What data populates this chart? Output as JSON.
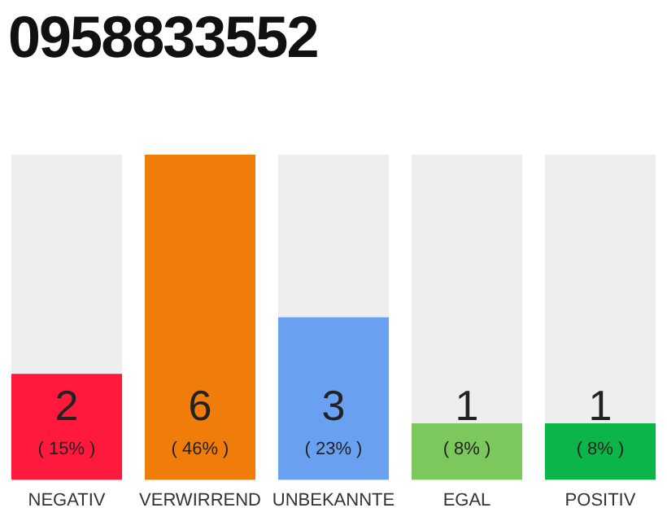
{
  "chart_data": {
    "type": "bar",
    "title": "0958833552",
    "categories": [
      "NEGATIV",
      "VERWIRREND",
      "UNBEKANNTE",
      "EGAL",
      "POSITIV"
    ],
    "values": [
      15,
      46,
      23,
      8,
      8
    ],
    "colors": [
      "#ff1a3d",
      "#f07d0a",
      "#6aa0f0",
      "#7dc85c",
      "#0bb54a"
    ],
    "tick_labels": "x",
    "grid": false,
    "legend": false,
    "value_labels": [
      "( 15% )",
      "( 46% )",
      "( 23% )",
      "( 8% )",
      "( 8% )"
    ],
    "annotations": [
      "2",
      "6",
      "3",
      "1",
      "1"
    ]
  }
}
